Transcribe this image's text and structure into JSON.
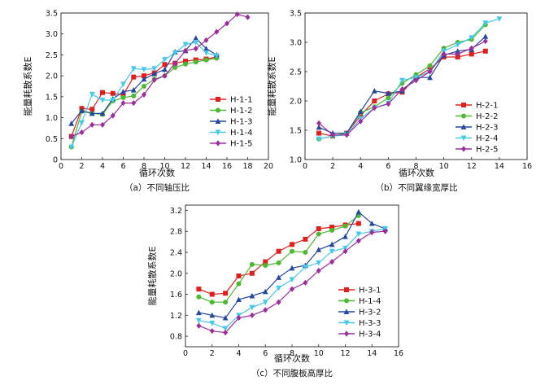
{
  "chart_data": [
    {
      "type": "line",
      "caption": "（a）不同轴压比",
      "xlabel": "循环次数",
      "ylabel": "能量耗散系数E",
      "xlim": [
        0,
        20
      ],
      "ylim": [
        0,
        3.5
      ],
      "xticks": [
        0,
        2,
        4,
        6,
        8,
        10,
        12,
        14,
        16,
        18,
        20
      ],
      "yticks": [
        0,
        0.5,
        1.0,
        1.5,
        2.0,
        2.5,
        3.0,
        3.5
      ],
      "tick_labels_y": [
        "0",
        "0.5",
        "1.0",
        "1.5",
        "2.0",
        "2.5",
        "3.0",
        "3.5"
      ],
      "tick_labels_x": [
        "0",
        "2",
        "4",
        "6",
        "8",
        "10",
        "12",
        "14",
        "16",
        "18",
        "20"
      ],
      "legend_position": "bottom-right",
      "grid": false,
      "series": [
        {
          "name": "H-1-1",
          "color": "#e0201e",
          "marker": "square",
          "x": [
            1,
            2,
            3,
            4,
            5,
            6,
            7,
            8,
            9,
            10,
            11,
            12,
            13,
            14,
            15
          ],
          "y": [
            0.55,
            1.22,
            1.2,
            1.6,
            1.58,
            1.55,
            1.97,
            2.0,
            2.07,
            2.27,
            2.3,
            2.35,
            2.38,
            2.4,
            2.45
          ]
        },
        {
          "name": "H-1-2",
          "color": "#4db831",
          "marker": "circle",
          "x": [
            1,
            2,
            3,
            4,
            5,
            6,
            7,
            8,
            9,
            10,
            11,
            12,
            13,
            14,
            15
          ],
          "y": [
            0.3,
            1.15,
            1.1,
            1.08,
            1.4,
            1.48,
            1.52,
            1.75,
            1.92,
            2.0,
            2.2,
            2.28,
            2.33,
            2.38,
            2.42
          ]
        },
        {
          "name": "H-1-3",
          "color": "#25479d",
          "marker": "triangle-up",
          "x": [
            1,
            2,
            3,
            4,
            5,
            6,
            7,
            8,
            9,
            10,
            11,
            12,
            13,
            14,
            15
          ],
          "y": [
            0.86,
            1.17,
            1.1,
            1.1,
            1.45,
            1.62,
            1.66,
            1.92,
            2.05,
            2.15,
            2.57,
            2.6,
            2.9,
            2.65,
            2.5
          ]
        },
        {
          "name": "H-1-4",
          "color": "#46c8ea",
          "marker": "triangle-down",
          "x": [
            1,
            2,
            3,
            4,
            5,
            6,
            7,
            8,
            9,
            10,
            11,
            12,
            13,
            14,
            15
          ],
          "y": [
            0.3,
            0.88,
            1.56,
            1.42,
            1.42,
            1.8,
            2.17,
            2.15,
            2.17,
            2.39,
            2.55,
            2.75,
            2.8,
            2.55,
            2.48
          ]
        },
        {
          "name": "H-1-5",
          "color": "#9b2e9b",
          "marker": "diamond",
          "x": [
            1,
            2,
            3,
            4,
            5,
            6,
            7,
            8,
            9,
            10,
            11,
            12,
            13,
            14,
            15,
            16,
            17,
            18
          ],
          "y": [
            0.55,
            0.65,
            0.83,
            0.83,
            1.05,
            1.35,
            1.35,
            1.55,
            1.9,
            2.0,
            2.3,
            2.6,
            2.65,
            2.85,
            3.05,
            3.25,
            3.47,
            3.4
          ]
        }
      ]
    },
    {
      "type": "line",
      "caption": "（b）不同翼缘宽厚比",
      "xlabel": "循环次数",
      "ylabel": "能量耗散系数E",
      "xlim": [
        0,
        16
      ],
      "ylim": [
        1.0,
        3.5
      ],
      "xticks": [
        0,
        2,
        4,
        6,
        8,
        10,
        12,
        14,
        16
      ],
      "yticks": [
        1.0,
        1.5,
        2.0,
        2.5,
        3.0,
        3.5
      ],
      "tick_labels_y": [
        "1.0",
        "1.5",
        "2.0",
        "2.5",
        "3.0",
        "3.5"
      ],
      "tick_labels_x": [
        "0",
        "2",
        "4",
        "6",
        "8",
        "10",
        "12",
        "14",
        "16"
      ],
      "legend_position": "bottom-right",
      "grid": false,
      "series": [
        {
          "name": "H-2-1",
          "color": "#e0201e",
          "marker": "square",
          "x": [
            1,
            2,
            3,
            4,
            5,
            6,
            7,
            8,
            9,
            10,
            11,
            12,
            13
          ],
          "y": [
            1.45,
            1.4,
            1.45,
            1.75,
            2.0,
            2.12,
            2.15,
            2.4,
            2.55,
            2.75,
            2.75,
            2.8,
            2.85
          ]
        },
        {
          "name": "H-2-2",
          "color": "#4db831",
          "marker": "circle",
          "x": [
            1,
            2,
            3,
            4,
            5,
            6,
            7,
            8,
            9,
            10,
            11,
            12,
            13
          ],
          "y": [
            1.35,
            1.4,
            1.45,
            1.8,
            1.9,
            2.05,
            2.3,
            2.45,
            2.6,
            2.9,
            3.0,
            3.05,
            3.3
          ]
        },
        {
          "name": "H-2-3",
          "color": "#25479d",
          "marker": "triangle-up",
          "x": [
            1,
            2,
            3,
            4,
            5,
            6,
            7,
            8,
            9,
            10,
            11,
            12,
            13
          ],
          "y": [
            1.55,
            1.45,
            1.45,
            1.82,
            2.17,
            2.13,
            2.17,
            2.4,
            2.4,
            2.78,
            2.85,
            2.88,
            3.1
          ]
        },
        {
          "name": "H-2-4",
          "color": "#46c8ea",
          "marker": "triangle-down",
          "x": [
            1,
            2,
            3,
            4,
            5,
            6,
            7,
            8,
            9,
            10,
            11,
            12,
            13,
            14
          ],
          "y": [
            1.35,
            1.4,
            1.42,
            1.7,
            1.88,
            1.96,
            2.35,
            2.4,
            2.5,
            2.85,
            2.96,
            3.08,
            3.33,
            3.4
          ]
        },
        {
          "name": "H-2-5",
          "color": "#9b2e9b",
          "marker": "diamond",
          "x": [
            1,
            2,
            3,
            4,
            5,
            6,
            7,
            8,
            9,
            10,
            11,
            12,
            13
          ],
          "y": [
            1.62,
            1.42,
            1.42,
            1.65,
            1.88,
            1.95,
            2.2,
            2.35,
            2.5,
            2.8,
            2.8,
            2.9,
            3.02
          ]
        }
      ]
    },
    {
      "type": "line",
      "caption": "（c）不同腹板高厚比",
      "xlabel": "循环次数",
      "ylabel": "能量耗散系数E",
      "xlim": [
        0,
        16
      ],
      "ylim": [
        0.6,
        3.3
      ],
      "xticks": [
        0,
        2,
        4,
        6,
        8,
        10,
        12,
        14,
        16
      ],
      "yticks": [
        0.8,
        1.2,
        1.6,
        2.0,
        2.4,
        2.8,
        3.2
      ],
      "tick_labels_y": [
        "0.8",
        "1.2",
        "1.6",
        "2.0",
        "2.4",
        "2.8",
        "3.2"
      ],
      "tick_labels_x": [
        "0",
        "2",
        "4",
        "6",
        "8",
        "10",
        "12",
        "14",
        "16"
      ],
      "legend_position": "bottom-right",
      "grid": false,
      "series": [
        {
          "name": "H-3-1",
          "color": "#e0201e",
          "marker": "square",
          "x": [
            1,
            2,
            3,
            4,
            5,
            6,
            7,
            8,
            9,
            10,
            11,
            12,
            13
          ],
          "y": [
            1.7,
            1.6,
            1.62,
            1.95,
            2.0,
            2.22,
            2.42,
            2.55,
            2.65,
            2.85,
            2.88,
            2.92,
            2.95
          ]
        },
        {
          "name": "H-1-4",
          "color": "#4db831",
          "marker": "circle",
          "x": [
            1,
            2,
            3,
            4,
            5,
            6,
            7,
            8,
            9,
            10,
            11,
            12,
            13
          ],
          "y": [
            1.55,
            1.45,
            1.45,
            1.8,
            2.17,
            2.15,
            2.2,
            2.42,
            2.4,
            2.75,
            2.82,
            2.9,
            3.1
          ]
        },
        {
          "name": "H-3-2",
          "color": "#25479d",
          "marker": "triangle-up",
          "x": [
            1,
            2,
            3,
            4,
            5,
            6,
            7,
            8,
            9,
            10,
            11,
            12,
            13,
            14,
            15
          ],
          "y": [
            1.25,
            1.2,
            1.15,
            1.5,
            1.57,
            1.65,
            1.92,
            2.1,
            2.15,
            2.45,
            2.55,
            2.7,
            3.17,
            2.95,
            2.85
          ]
        },
        {
          "name": "H-3-3",
          "color": "#46c8ea",
          "marker": "triangle-down",
          "x": [
            1,
            2,
            3,
            4,
            5,
            6,
            7,
            8,
            9,
            10,
            11,
            12,
            13,
            14,
            15
          ],
          "y": [
            1.1,
            1.05,
            0.95,
            1.2,
            1.35,
            1.45,
            1.72,
            1.88,
            2.12,
            2.2,
            2.42,
            2.48,
            2.75,
            2.8,
            2.85
          ]
        },
        {
          "name": "H-3-4",
          "color": "#9b2e9b",
          "marker": "diamond",
          "x": [
            1,
            2,
            3,
            4,
            5,
            6,
            7,
            8,
            9,
            10,
            11,
            12,
            13,
            14,
            15
          ],
          "y": [
            1.0,
            0.9,
            0.87,
            1.15,
            1.2,
            1.3,
            1.45,
            1.7,
            1.82,
            2.05,
            2.22,
            2.42,
            2.62,
            2.78,
            2.8
          ]
        }
      ]
    }
  ]
}
